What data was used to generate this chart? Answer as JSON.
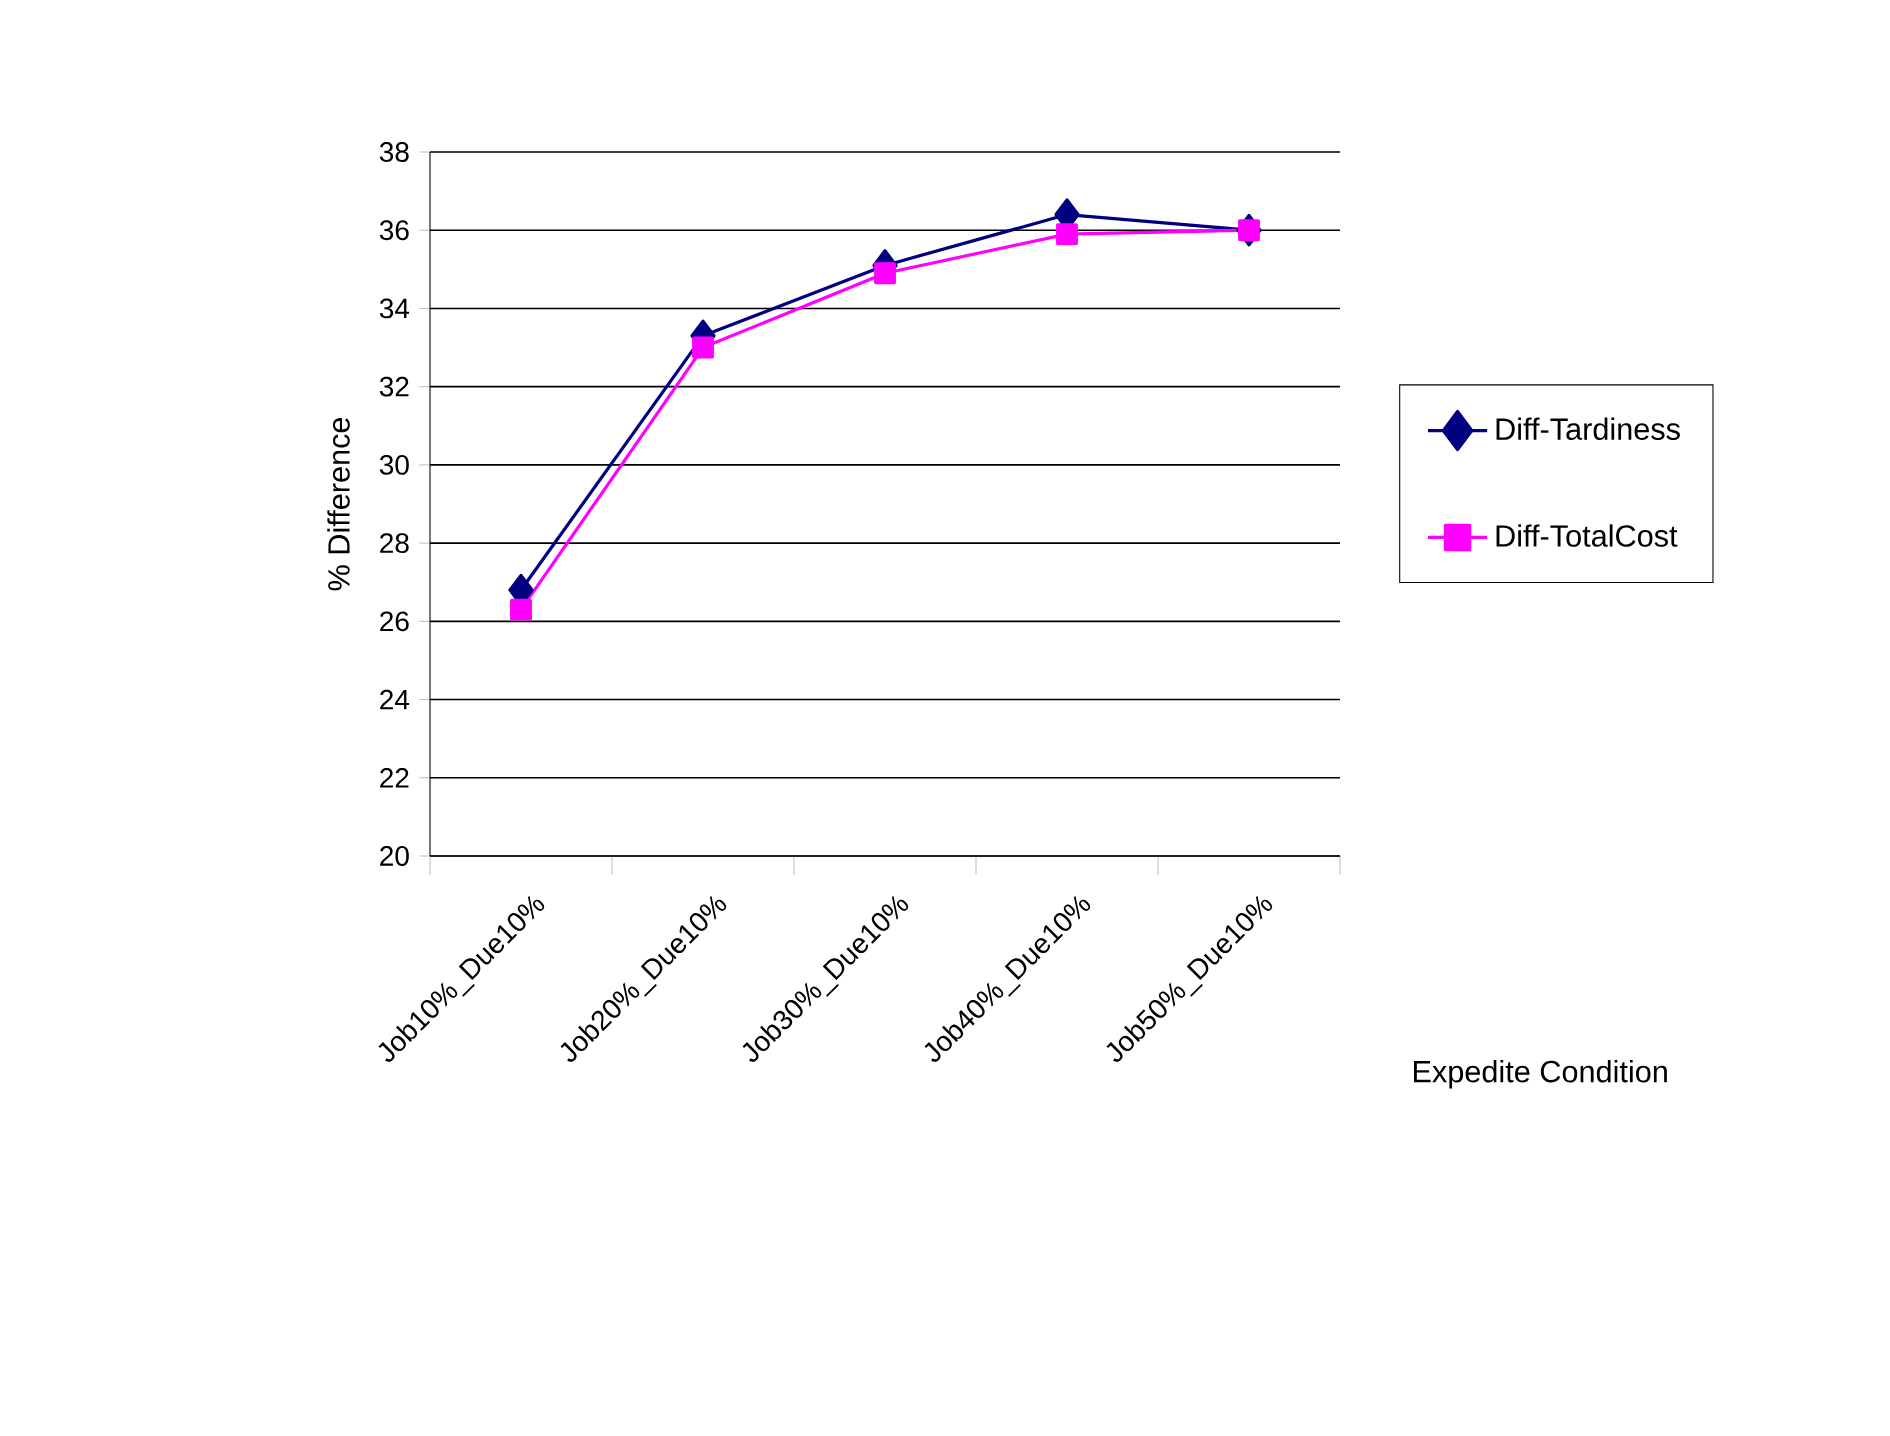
{
  "chart_data": {
    "type": "line",
    "xlabel": "Expedite Condition",
    "ylabel": "% Difference",
    "categories": [
      "Job10%_Due10%",
      "Job20%_Due10%",
      "Job30%_Due10%",
      "Job40%_Due10%",
      "Job50%_Due10%"
    ],
    "series": [
      {
        "name": "Diff-Tardiness",
        "color": "#000080",
        "marker": "diamond",
        "values": [
          26.8,
          33.3,
          35.1,
          36.4,
          36.0
        ]
      },
      {
        "name": "Diff-TotalCost",
        "color": "#ff00ff",
        "marker": "square",
        "values": [
          26.3,
          33.0,
          34.9,
          35.9,
          36.0
        ]
      }
    ],
    "ylim": [
      20,
      38
    ],
    "yticks": [
      20,
      22,
      24,
      26,
      28,
      30,
      32,
      34,
      36,
      38
    ],
    "grid": "y",
    "legend": "right",
    "line_style": "solid"
  }
}
